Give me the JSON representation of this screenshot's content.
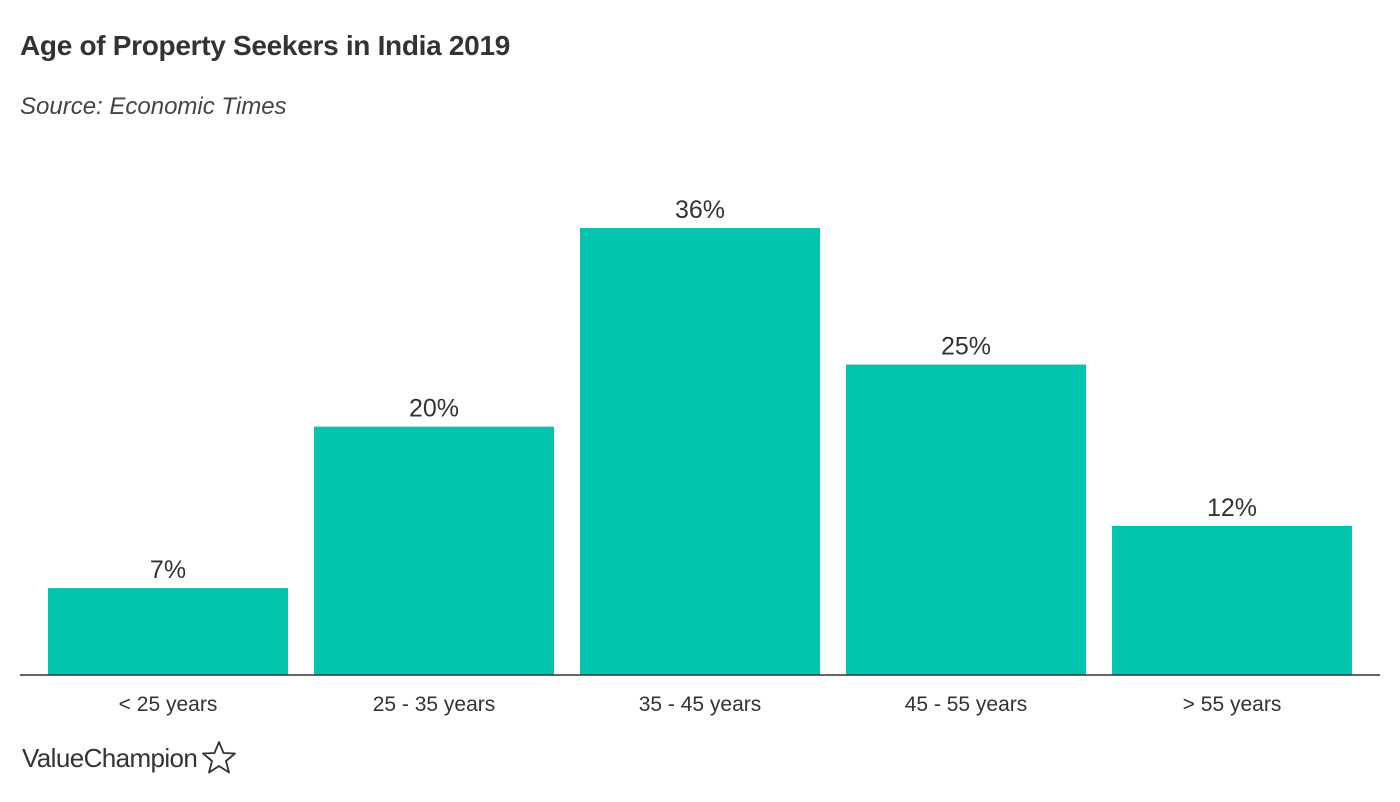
{
  "chart_data": {
    "type": "bar",
    "title": "Age of Property Seekers in India 2019",
    "subtitle": "Source: Economic Times",
    "categories": [
      "< 25 years",
      "25 - 35 years",
      "35 - 45 years",
      "45 - 55 years",
      "> 55 years"
    ],
    "values": [
      7,
      20,
      36,
      25,
      12
    ],
    "value_labels": [
      "7%",
      "20%",
      "36%",
      "25%",
      "12%"
    ],
    "xlabel": "",
    "ylabel": "",
    "ylim": [
      0,
      36
    ],
    "grid": false,
    "legend": "none",
    "bar_color": "#00C4AE"
  },
  "brand": {
    "name": "ValueChampion",
    "icon": "star-outline-icon"
  }
}
